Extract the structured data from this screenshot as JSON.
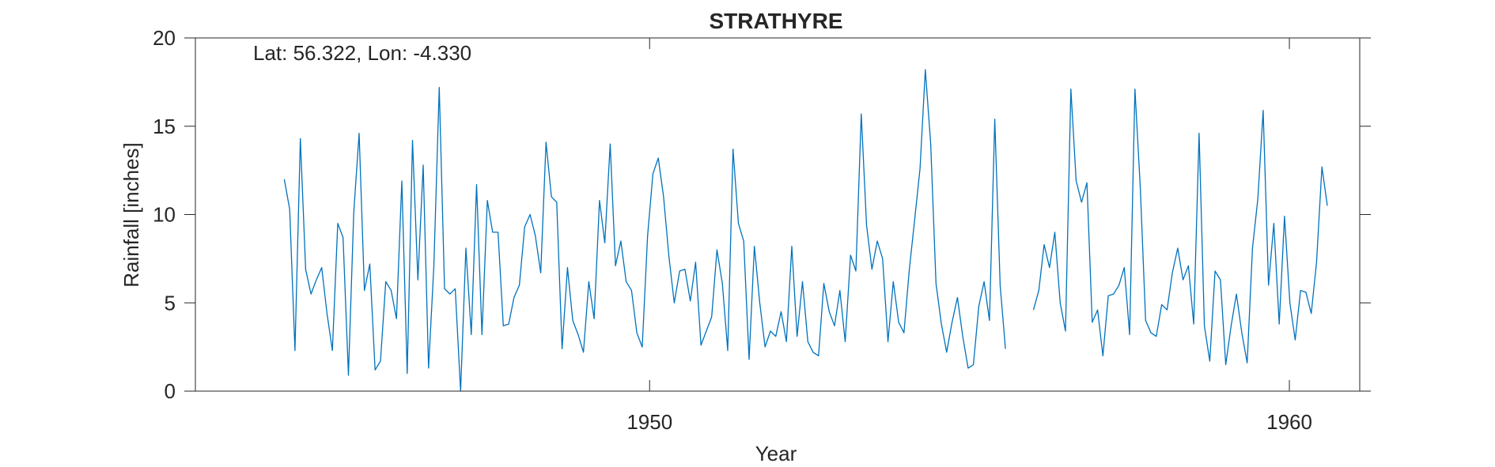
{
  "chart_data": {
    "type": "line",
    "title": "STRATHYRE",
    "annotation": "Lat: 56.322, Lon: -4.330",
    "xlabel": "Year",
    "ylabel": "Rainfall [inches]",
    "xlim": [
      1942.9,
      1961.1
    ],
    "ylim": [
      0,
      20
    ],
    "xticks": [
      1950,
      1960
    ],
    "xtick_labels": [
      "1950",
      "1960"
    ],
    "yticks": [
      0,
      5,
      10,
      15,
      20
    ],
    "ytick_labels": [
      "0",
      "5",
      "10",
      "15",
      "20"
    ],
    "grid": false,
    "line_color": "#0072BD",
    "series": [
      {
        "segments": [
          {
            "start": 1944.29,
            "step": 0.0835,
            "values": [
              12.0,
              10.3,
              2.3,
              14.3,
              6.9,
              5.5,
              6.3,
              7.0,
              4.4,
              2.3,
              9.5,
              8.7,
              0.9,
              10.1,
              14.6,
              5.7,
              7.2,
              1.2,
              1.7,
              6.2,
              5.7,
              4.1,
              11.9,
              1.0,
              14.2,
              6.3,
              12.8,
              1.3,
              7.1,
              17.2,
              5.8,
              5.5,
              5.8,
              0.0,
              8.1,
              3.2,
              11.7,
              3.2,
              10.8,
              9.0,
              9.0,
              3.7,
              3.8,
              5.3,
              6.0,
              9.3,
              10.0,
              8.8,
              6.7,
              14.1,
              11.0,
              10.7,
              2.4,
              7.0,
              4.0,
              3.2,
              2.2,
              6.2,
              4.1,
              10.8,
              8.4,
              14.0,
              7.1,
              8.5,
              6.2,
              5.7,
              3.3,
              2.5,
              8.8,
              12.3,
              13.2,
              11.0,
              7.6,
              5.0,
              6.8,
              6.9,
              5.1,
              7.3,
              2.6,
              3.4,
              4.2,
              8.0,
              6.1,
              2.3,
              13.7,
              9.5,
              8.5,
              1.8,
              8.2,
              5.0,
              2.5,
              3.4,
              3.1,
              4.5,
              2.8,
              8.2,
              3.1,
              6.2,
              2.8,
              2.2,
              2.0,
              6.1,
              4.5,
              3.7,
              5.7,
              2.8,
              7.7,
              6.8,
              15.7,
              9.4,
              6.9,
              8.5,
              7.5,
              2.8,
              6.2,
              3.9,
              3.3,
              6.9,
              9.7,
              12.6,
              18.2,
              14.0,
              6.1,
              3.8,
              2.2,
              3.9,
              5.3,
              3.1,
              1.3,
              1.5,
              4.8,
              6.2,
              4.0,
              15.4,
              6.0,
              2.4
            ]
          },
          {
            "start": 1956.0,
            "step": 0.0835,
            "values": [
              4.6,
              5.7,
              8.3,
              7.0,
              9.0,
              5.0,
              3.4,
              17.1,
              11.9,
              10.7,
              11.8,
              3.9,
              4.6,
              2.0,
              5.4,
              5.5,
              6.0,
              7.0,
              3.2,
              17.1,
              11.5,
              4.0,
              3.3,
              3.1,
              4.9,
              4.6,
              6.7,
              8.1,
              6.3,
              7.1,
              3.8,
              14.6,
              3.7,
              1.7,
              6.8,
              6.3,
              1.5,
              3.7,
              5.5,
              3.3,
              1.6,
              8.1,
              10.9,
              15.9,
              6.0,
              9.5,
              3.8,
              9.9,
              5.0,
              2.9,
              5.7,
              5.6,
              4.4,
              7.3,
              12.7,
              10.5
            ]
          }
        ]
      }
    ]
  }
}
